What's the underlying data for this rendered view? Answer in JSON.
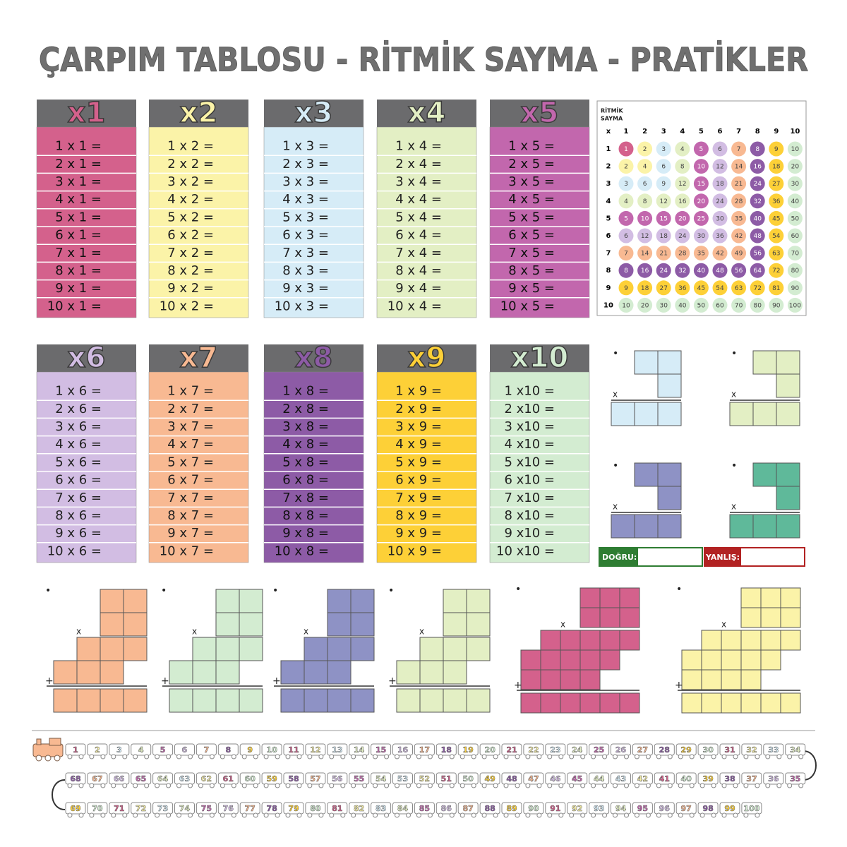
{
  "title": "ÇARPIM TABLOSU - RİTMİK SAYMA - PRATİKLER",
  "tables": [
    {
      "header": "x1",
      "color": "#d4618c",
      "rows": [
        "1 x 1 =",
        "2 x 1 =",
        "3 x 1 =",
        "4 x 1 =",
        "5 x 1 =",
        "6 x 1 =",
        "7 x 1 =",
        "8 x 1 =",
        "9 x 1 =",
        "10 x 1 ="
      ]
    },
    {
      "header": "x2",
      "color": "#fbf3a8",
      "rows": [
        "1 x 2 =",
        "2 x 2 =",
        "3 x 2 =",
        "4 x 2 =",
        "5 x 2 =",
        "6 x 2 =",
        "7 x 2 =",
        "8 x 2 =",
        "9 x 2 =",
        "10 x 2 ="
      ]
    },
    {
      "header": "x3",
      "color": "#d6ecf7",
      "rows": [
        "1 x 3 =",
        "2 x 3 =",
        "3 x 3 =",
        "4 x 3 =",
        "5 x 3 =",
        "6 x 3 =",
        "7 x 3 =",
        "8 x 3 =",
        "9 x 3 =",
        "10 x 3 ="
      ]
    },
    {
      "header": "x4",
      "color": "#e3efc4",
      "rows": [
        "1 x 4 =",
        "2 x 4 =",
        "3 x 4 =",
        "4 x 4 =",
        "5 x 4 =",
        "6 x 4 =",
        "7 x 4 =",
        "8 x 4 =",
        "9 x 4 =",
        "10 x 4 ="
      ]
    },
    {
      "header": "x5",
      "color": "#c267ad",
      "rows": [
        "1 x 5 =",
        "2 x 5 =",
        "3 x 5 =",
        "4 x 5 =",
        "5 x 5 =",
        "6 x 5 =",
        "7 x 5 =",
        "8 x 5 =",
        "9 x 5 =",
        "10 x 5 ="
      ]
    },
    {
      "header": "x6",
      "color": "#d2bde3",
      "rows": [
        "1 x 6 =",
        "2 x 6 =",
        "3 x 6 =",
        "4 x 6 =",
        "5 x 6 =",
        "6 x 6 =",
        "7 x 6 =",
        "8 x 6 =",
        "9 x 6 =",
        "10 x 6 ="
      ]
    },
    {
      "header": "x7",
      "color": "#f8b992",
      "rows": [
        "1 x 7 =",
        "2 x 7 =",
        "3 x 7 =",
        "4 x 7 =",
        "5 x 7 =",
        "6 x 7 =",
        "7 x 7 =",
        "8 x 7 =",
        "9 x 7 =",
        "10 x 7 ="
      ]
    },
    {
      "header": "x8",
      "color": "#8d5ba6",
      "rows": [
        "1 x 8 =",
        "2 x 8 =",
        "3 x 8 =",
        "4 x 8 =",
        "5 x 8 =",
        "6 x 8 =",
        "7 x 8 =",
        "8 x 8 =",
        "9 x 8 =",
        "10 x 8 ="
      ]
    },
    {
      "header": "x9",
      "color": "#fdd037",
      "rows": [
        "1 x 9 =",
        "2 x 9 =",
        "3 x 9 =",
        "4 x 9 =",
        "5 x 9 =",
        "6 x 9 =",
        "7 x 9 =",
        "8 x 9 =",
        "9 x 9 =",
        "10 x 9 ="
      ]
    },
    {
      "header": "x10",
      "color": "#d3ecd1",
      "rows": [
        "1 x10 =",
        "2 x10 =",
        "3 x10 =",
        "4 x10 =",
        "5 x10 =",
        "6 x10 =",
        "7 x10 =",
        "8 x10 =",
        "9 x10 =",
        "10 x10 ="
      ]
    }
  ],
  "rhythm": {
    "title_lines": [
      "RİTMİK",
      "SAYMA"
    ],
    "corner": "x",
    "columns": [
      1,
      2,
      3,
      4,
      5,
      6,
      7,
      8,
      9,
      10
    ],
    "rows": [
      1,
      2,
      3,
      4,
      5,
      6,
      7,
      8,
      9,
      10
    ],
    "cells": [
      [
        1,
        2,
        3,
        4,
        5,
        6,
        7,
        8,
        9,
        10
      ],
      [
        2,
        4,
        6,
        8,
        10,
        12,
        14,
        16,
        18,
        20
      ],
      [
        3,
        6,
        9,
        12,
        15,
        18,
        21,
        24,
        27,
        30
      ],
      [
        4,
        8,
        12,
        16,
        20,
        24,
        28,
        32,
        36,
        40
      ],
      [
        5,
        10,
        15,
        20,
        25,
        30,
        35,
        40,
        45,
        50
      ],
      [
        6,
        12,
        18,
        24,
        30,
        36,
        42,
        48,
        54,
        60
      ],
      [
        7,
        14,
        21,
        28,
        35,
        42,
        49,
        56,
        63,
        70
      ],
      [
        8,
        16,
        24,
        32,
        40,
        48,
        56,
        64,
        72,
        80
      ],
      [
        9,
        18,
        27,
        36,
        45,
        54,
        63,
        72,
        81,
        90
      ],
      [
        10,
        20,
        30,
        40,
        50,
        60,
        70,
        80,
        90,
        100
      ]
    ]
  },
  "practice": {
    "dot": "•",
    "times": "x",
    "plus": "+",
    "correct": "DOĞRU:",
    "wrong": "YANLIŞ:"
  },
  "train": [
    1,
    2,
    3,
    4,
    5,
    6,
    7,
    8,
    9,
    10,
    11,
    12,
    13,
    14,
    15,
    16,
    17,
    18,
    19,
    20,
    21,
    22,
    23,
    24,
    25,
    26,
    27,
    28,
    29,
    30,
    31,
    32,
    33,
    34,
    35,
    36,
    37,
    38,
    39,
    40,
    41,
    42,
    43,
    44,
    45,
    46,
    47,
    48,
    49,
    50,
    51,
    52,
    53,
    54,
    55,
    56,
    57,
    58,
    59,
    60,
    61,
    62,
    63,
    64,
    65,
    66,
    67,
    68,
    69,
    70,
    71,
    72,
    73,
    74,
    75,
    76,
    77,
    78,
    79,
    80,
    81,
    82,
    83,
    84,
    85,
    86,
    87,
    88,
    89,
    90,
    91,
    92,
    93,
    94,
    95,
    96,
    97,
    98,
    99,
    100
  ]
}
